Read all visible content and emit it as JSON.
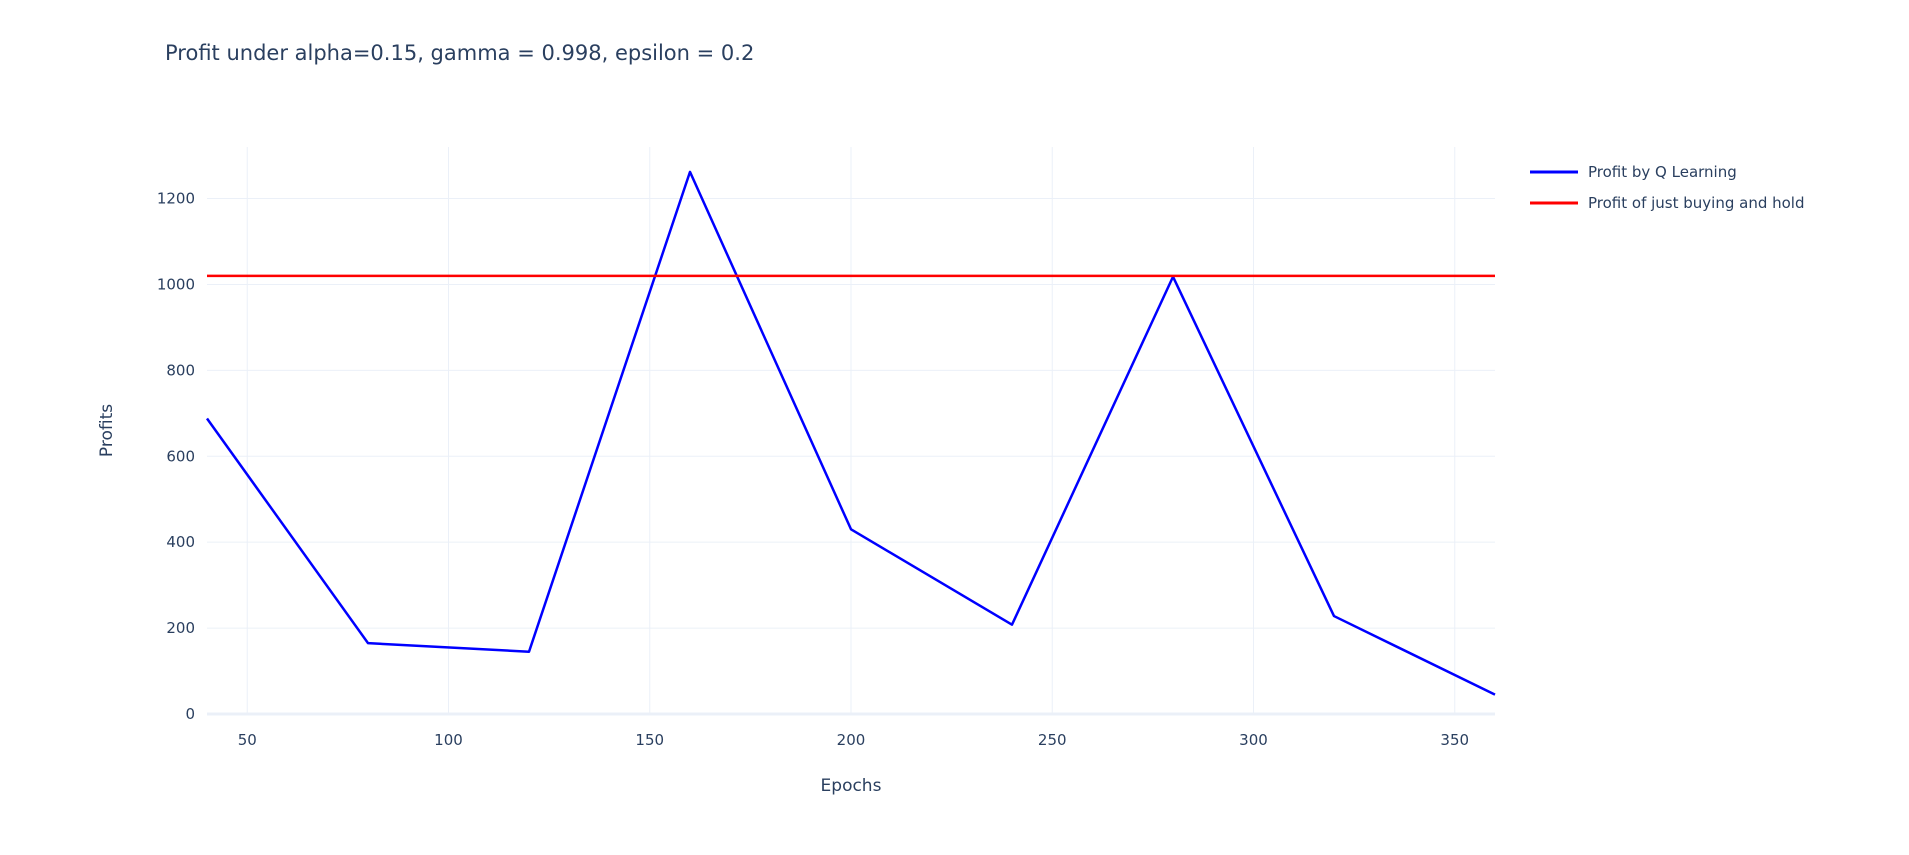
{
  "chart_data": {
    "type": "line",
    "title": "Profit under alpha=0.15, gamma = 0.998, epsilon = 0.2",
    "xlabel": "Epochs",
    "ylabel": "Profits",
    "xlim": [
      40,
      360
    ],
    "ylim": [
      0,
      1320
    ],
    "x_ticks": [
      50,
      100,
      150,
      200,
      250,
      300,
      350
    ],
    "y_ticks": [
      0,
      200,
      400,
      600,
      800,
      1000,
      1200
    ],
    "grid": true,
    "legend_position": "top-right outside",
    "series": [
      {
        "name": "Profit by Q Learning",
        "color": "#0000ff",
        "x": [
          40,
          80,
          120,
          160,
          200,
          240,
          280,
          320,
          360
        ],
        "y": [
          688,
          165,
          145,
          1262,
          430,
          208,
          1018,
          228,
          45
        ]
      },
      {
        "name": "Profit of just buying and hold",
        "color": "#ff0000",
        "x": [
          40,
          360
        ],
        "y": [
          1020,
          1020
        ]
      }
    ]
  }
}
